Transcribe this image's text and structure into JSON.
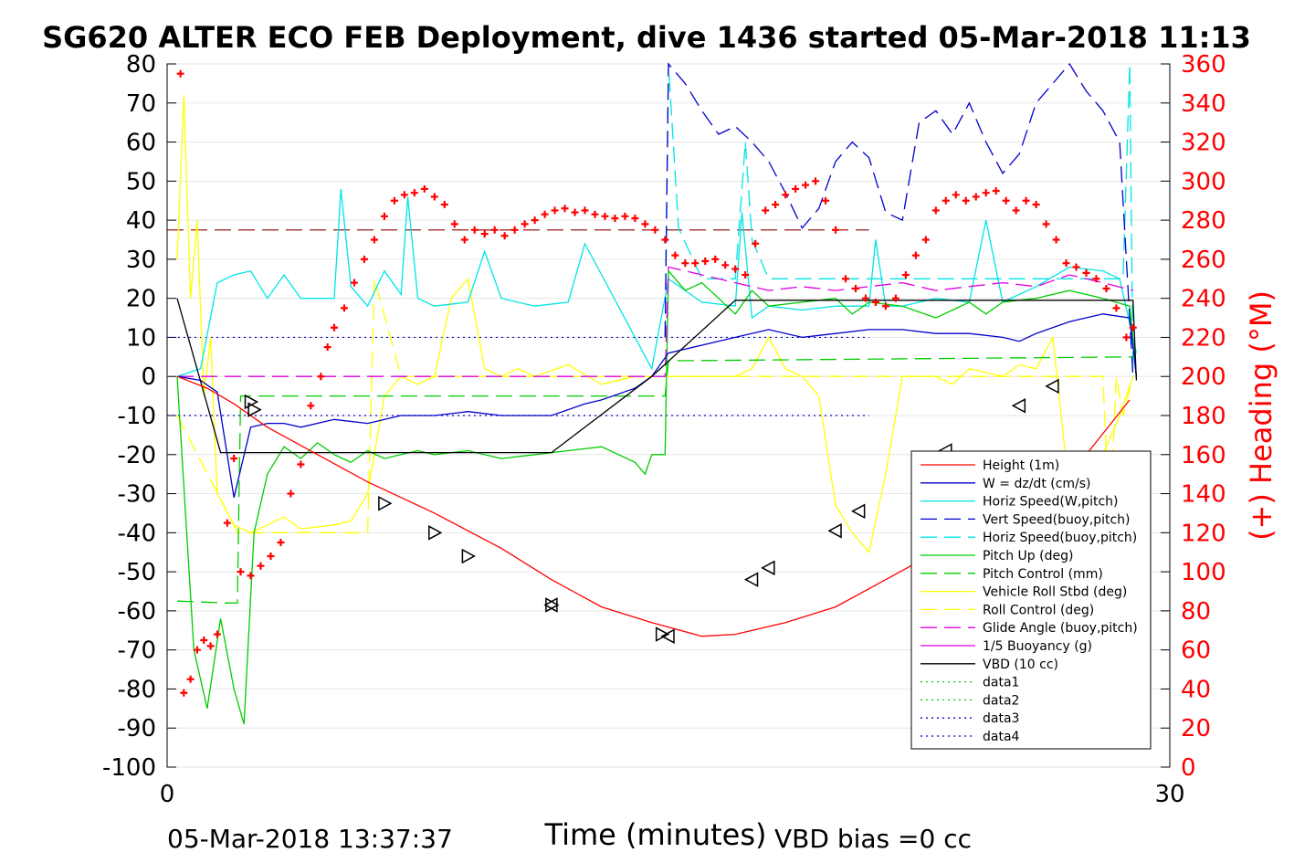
{
  "colors": {
    "height": "#ff0000",
    "w": "#0000cc",
    "horiz_w": "#00e5e5",
    "vert_buoy": "#0000cc",
    "horiz_buoy": "#00e5e5",
    "pitch_up": "#00cc00",
    "pitch_ctrl": "#00cc00",
    "roll": "#ffff00",
    "roll_ctrl": "#ffff00",
    "glide": "#e000e0",
    "buoy": "#e000e0",
    "vbd": "#000000",
    "heading": "#ff0000",
    "heading_ref": "#8b0000"
  },
  "footer": {
    "date": "05-Mar-2018 13:37:37",
    "vbd_bias": "VBD bias =0 cc"
  },
  "chart_data": {
    "type": "line",
    "title": "SG620 ALTER ECO FEB Deployment, dive 1436 started 05-Mar-2018 11:13",
    "xlabel": "Time (minutes)",
    "ylabel": "",
    "ylabel_right": "(+) Heading (°M)",
    "xlim": [
      0,
      30
    ],
    "ylim": [
      -100,
      80
    ],
    "ylim_right": [
      0,
      360
    ],
    "x_ticks": [
      "0",
      "30"
    ],
    "y_ticks": [
      "80",
      "70",
      "60",
      "50",
      "40",
      "30",
      "20",
      "10",
      "0",
      "-10",
      "-20",
      "-30",
      "-40",
      "-50",
      "-60",
      "-70",
      "-80",
      "-90",
      "-100"
    ],
    "y_right_ticks": [
      "360",
      "340",
      "320",
      "300",
      "280",
      "260",
      "240",
      "220",
      "200",
      "180",
      "160",
      "140",
      "120",
      "100",
      "80",
      "60",
      "40",
      "20",
      "0"
    ],
    "grid": "horizontal",
    "legend_position": "lower-right",
    "legend": [
      {
        "label": "Height (1m)",
        "key": "height",
        "dash": "solid"
      },
      {
        "label": "W = dz/dt (cm/s)",
        "key": "w",
        "dash": "solid"
      },
      {
        "label": "Horiz Speed(W,pitch)",
        "key": "horiz_w",
        "dash": "solid"
      },
      {
        "label": "Vert Speed(buoy,pitch)",
        "key": "vert_buoy",
        "dash": "dashed"
      },
      {
        "label": "Horiz Speed(buoy,pitch)",
        "key": "horiz_buoy",
        "dash": "dashed"
      },
      {
        "label": "Pitch Up (deg)",
        "key": "pitch_up",
        "dash": "solid"
      },
      {
        "label": "Pitch Control (mm)",
        "key": "pitch_ctrl",
        "dash": "dashed"
      },
      {
        "label": "Vehicle Roll Stbd (deg)",
        "key": "roll",
        "dash": "solid"
      },
      {
        "label": "Roll Control (deg)",
        "key": "roll_ctrl",
        "dash": "dashed"
      },
      {
        "label": "Glide Angle (buoy,pitch)",
        "key": "glide",
        "dash": "dashed"
      },
      {
        "label": "1/5 Buoyancy (g)",
        "key": "buoy",
        "dash": "solid"
      },
      {
        "label": "VBD (10 cc)",
        "key": "vbd",
        "dash": "solid"
      },
      {
        "label": "data1",
        "key": "pitch_up",
        "dash": "dotted"
      },
      {
        "label": "data2",
        "key": "pitch_up",
        "dash": "dotted"
      },
      {
        "label": "data3",
        "key": "w",
        "dash": "dotted"
      },
      {
        "label": "data4",
        "key": "w",
        "dash": "dotted"
      }
    ],
    "series": {
      "height": {
        "x": [
          0.3,
          1.2,
          2.0,
          3.0,
          4.5,
          6.0,
          8.0,
          10.0,
          11.5,
          13.0,
          14.5,
          16.0,
          17.0,
          18.5,
          20.0,
          21.5,
          23.0,
          24.5,
          26.0,
          27.5,
          28.8
        ],
        "y": [
          0,
          -3,
          -7,
          -13,
          -20,
          -27,
          -35,
          -44,
          -52,
          -59,
          -63,
          -66.5,
          -66,
          -63,
          -59,
          -52,
          -45,
          -36,
          -28,
          -20,
          -6
        ]
      },
      "vbd": {
        "x": [
          0.3,
          1.6,
          2.2,
          9.0,
          11.5,
          14.5,
          17.0,
          28.9,
          29.0
        ],
        "y": [
          20,
          -19.5,
          -19.5,
          -19.5,
          -19.5,
          0,
          19.5,
          19.5,
          -1
        ]
      },
      "w": {
        "x": [
          0.3,
          1.0,
          1.5,
          2.0,
          2.5,
          3.0,
          3.5,
          4.0,
          5.0,
          6.0,
          7.0,
          8.0,
          9.0,
          10.0,
          11.5,
          12.5,
          13.0,
          14.0,
          14.5,
          15.0,
          16.0,
          17.0,
          18.0,
          19.0,
          20.0,
          21.0,
          22.0,
          23.0,
          24.0,
          25.0,
          25.5,
          26.0,
          27.0,
          28.0,
          28.8,
          29.0
        ],
        "y": [
          0,
          -1,
          -4,
          -31,
          -13,
          -12,
          -12,
          -13,
          -11,
          -12,
          -10,
          -10,
          -9,
          -10,
          -10,
          -7,
          -6,
          -3,
          0,
          6,
          8,
          10,
          12,
          10,
          11,
          12,
          12,
          11,
          11,
          10,
          9,
          11,
          14,
          16,
          15,
          0
        ]
      },
      "horiz_w": {
        "x": [
          0.3,
          1.0,
          1.5,
          2.0,
          2.5,
          3.0,
          3.5,
          4.0,
          5.0,
          5.2,
          5.5,
          6.0,
          6.5,
          7.0,
          7.2,
          7.5,
          8.0,
          9.0,
          9.5,
          10.0,
          11.0,
          12.0,
          12.5,
          13.0,
          14.0,
          14.5,
          15.0,
          15.5,
          16.0,
          17.0,
          17.2,
          17.5,
          18.0,
          19.0,
          20.0,
          21.0,
          21.2,
          21.5,
          22.0,
          23.0,
          24.0,
          24.5,
          25.0,
          26.0,
          27.0,
          28.0,
          28.5,
          29.0
        ],
        "y": [
          0,
          2,
          24,
          26,
          27,
          20,
          26,
          20,
          20,
          48,
          23,
          18,
          27,
          21,
          46,
          20,
          18,
          19,
          32,
          20,
          18,
          19,
          34,
          26,
          10,
          2,
          25,
          22,
          19,
          18,
          42,
          15,
          18,
          17,
          18,
          18,
          35,
          18,
          18,
          20,
          19,
          40,
          19,
          23,
          28,
          27,
          25,
          6
        ]
      },
      "vert_buoy": {
        "x": [
          14.9,
          15.0,
          15.5,
          16.0,
          16.5,
          17.0,
          17.5,
          18.0,
          18.5,
          19.0,
          19.5,
          20.0,
          20.5,
          21.0,
          21.5,
          22.0,
          22.5,
          23.0,
          23.5,
          24.0,
          24.5,
          25.0,
          25.5,
          26.0,
          26.5,
          27.0,
          27.5,
          28.0,
          28.5,
          28.9
        ],
        "y": [
          10,
          80,
          75,
          68,
          62,
          64,
          60,
          55,
          47,
          38,
          43,
          55,
          60,
          56,
          42,
          40,
          65,
          68,
          62,
          70,
          60,
          52,
          57,
          70,
          75,
          80,
          73,
          68,
          60,
          0
        ]
      },
      "horiz_buoy": {
        "x": [
          14.9,
          15.0,
          15.3,
          16.0,
          17.0,
          17.3,
          17.5,
          18.0,
          18.3,
          28.6,
          28.8,
          28.9
        ],
        "y": [
          10,
          80,
          38,
          25,
          25,
          60,
          35,
          25,
          25,
          25,
          80,
          0
        ]
      },
      "pitch_up": {
        "x": [
          0.3,
          0.8,
          1.2,
          1.6,
          2.0,
          2.3,
          2.6,
          3.0,
          3.5,
          4.0,
          4.5,
          5.0,
          5.5,
          6.0,
          6.5,
          7.0,
          7.5,
          8.0,
          9.0,
          10.0,
          11.0,
          12.0,
          13.0,
          14.0,
          14.3,
          14.5,
          14.9,
          15.0,
          15.5,
          16.0,
          16.5,
          17.0,
          17.5,
          18.0,
          19.0,
          20.0,
          20.5,
          21.0,
          22.0,
          23.0,
          24.0,
          24.5,
          25.0,
          26.0,
          27.0,
          28.0,
          28.8,
          29.0
        ],
        "y": [
          0,
          -70,
          -85,
          -62,
          -80,
          -89,
          -40,
          -25,
          -18,
          -21,
          -17,
          -20,
          -22,
          -19,
          -21,
          -20,
          -19,
          -20,
          -19,
          -21,
          -20,
          -19,
          -18,
          -22,
          -25,
          -20,
          -20,
          27,
          22,
          24,
          20,
          16,
          22,
          18,
          19,
          20,
          16,
          19,
          18,
          15,
          19,
          16,
          19,
          20,
          22,
          20,
          18,
          0
        ]
      },
      "pitch_ctrl": {
        "x": [
          0.3,
          1.8,
          2.1,
          2.2,
          14.9,
          15.0,
          28.9
        ],
        "y": [
          -57.5,
          -58,
          -58,
          -5,
          -5,
          4,
          5
        ]
      },
      "roll": {
        "x": [
          0.3,
          0.5,
          0.7,
          0.9,
          1.1,
          1.3,
          1.5,
          2.0,
          2.5,
          3.0,
          3.5,
          4.0,
          5.0,
          5.5,
          6.0,
          6.5,
          7.0,
          7.5,
          8.0,
          8.5,
          9.0,
          9.5,
          10.0,
          10.5,
          11.0,
          12.0,
          13.0,
          14.0,
          15.0,
          16.0,
          17.0,
          17.5,
          18.0,
          18.5,
          19.0,
          19.5,
          20.0,
          20.5,
          21.0,
          21.5,
          22.0,
          23.0,
          23.5,
          24.0,
          25.0,
          25.5,
          26.0,
          26.5,
          27.0,
          27.5,
          28.0,
          28.5,
          28.9
        ],
        "y": [
          30,
          72,
          20,
          40,
          -5,
          10,
          -30,
          -38,
          -40,
          -38,
          -36,
          -39,
          -38,
          -37,
          -30,
          -5,
          0,
          -2,
          0,
          20,
          25,
          2,
          0,
          2,
          0,
          3,
          -2,
          0,
          0,
          0,
          0,
          2,
          10,
          2,
          0,
          -5,
          -33,
          -40,
          -45,
          -25,
          0,
          0,
          -2,
          2,
          0,
          3,
          2,
          10,
          -30,
          -40,
          -20,
          -10,
          0
        ]
      },
      "roll_ctrl": {
        "x": [
          0.3,
          2.0,
          2.1,
          4.0,
          4.8,
          5.0,
          6.0,
          6.2,
          7.0,
          28.0,
          28.2,
          28.4,
          28.6,
          28.9
        ],
        "y": [
          -10,
          -38,
          -40,
          -40,
          -40,
          -40,
          -40,
          25,
          0,
          0,
          -40,
          0,
          -10,
          0
        ]
      },
      "glide": {
        "x": [
          0.3,
          14.9,
          15.0,
          16.0,
          17.0,
          18.0,
          19.0,
          20.0,
          21.0,
          22.0,
          23.0,
          24.0,
          25.0,
          26.0,
          27.0,
          28.0,
          28.9
        ],
        "y": [
          0,
          0,
          28,
          26,
          24,
          22,
          23,
          22,
          23,
          24,
          22,
          23,
          24,
          23,
          26,
          24,
          22
        ]
      },
      "heading": {
        "x": [
          0.4,
          0.5,
          0.7,
          0.9,
          1.1,
          1.3,
          1.5,
          1.8,
          2.0,
          2.2,
          2.5,
          2.8,
          3.1,
          3.4,
          3.7,
          4.0,
          4.3,
          4.6,
          4.8,
          5.0,
          5.3,
          5.6,
          5.9,
          6.2,
          6.5,
          6.8,
          7.1,
          7.4,
          7.7,
          8.0,
          8.3,
          8.6,
          8.9,
          9.2,
          9.5,
          9.8,
          10.1,
          10.4,
          10.7,
          11.0,
          11.3,
          11.6,
          11.9,
          12.2,
          12.5,
          12.8,
          13.1,
          13.4,
          13.7,
          14.0,
          14.3,
          14.6,
          14.9,
          15.2,
          15.5,
          15.8,
          16.1,
          16.4,
          16.7,
          17.0,
          17.3,
          17.6,
          17.9,
          18.2,
          18.5,
          18.8,
          19.1,
          19.4,
          19.7,
          20.0,
          20.3,
          20.6,
          20.9,
          21.2,
          21.5,
          21.8,
          22.1,
          22.4,
          22.7,
          23.0,
          23.3,
          23.6,
          23.9,
          24.2,
          24.5,
          24.8,
          25.1,
          25.4,
          25.7,
          26.0,
          26.3,
          26.6,
          26.9,
          27.2,
          27.5,
          27.8,
          28.1,
          28.4,
          28.7,
          28.9
        ],
        "y": [
          355,
          38,
          45,
          60,
          65,
          62,
          68,
          125,
          158,
          100,
          98,
          103,
          108,
          115,
          140,
          155,
          185,
          200,
          215,
          225,
          235,
          248,
          260,
          270,
          282,
          290,
          293,
          294,
          296,
          292,
          288,
          278,
          270,
          275,
          273,
          275,
          272,
          275,
          278,
          280,
          283,
          285,
          286,
          284,
          285,
          283,
          282,
          281,
          282,
          281,
          278,
          275,
          270,
          262,
          258,
          258,
          259,
          260,
          257,
          255,
          252,
          268,
          285,
          288,
          293,
          296,
          298,
          300,
          290,
          275,
          250,
          245,
          240,
          238,
          236,
          240,
          252,
          262,
          270,
          285,
          290,
          293,
          290,
          292,
          294,
          295,
          290,
          285,
          290,
          288,
          278,
          270,
          258,
          256,
          253,
          250,
          245,
          235,
          220,
          225
        ]
      }
    },
    "heading_ref": 275,
    "hlines_left": [
      10,
      -10
    ],
    "markers_down": [
      [
        2.5,
        -6.5
      ],
      [
        2.6,
        -8.5
      ],
      [
        6.5,
        -32.5
      ],
      [
        8.0,
        -40.0
      ],
      [
        9.0,
        -46.0
      ],
      [
        11.5,
        -58.5
      ],
      [
        14.8,
        -66.0
      ]
    ],
    "markers_up": [
      [
        11.5,
        -58.5
      ],
      [
        15.0,
        -66.5
      ],
      [
        17.5,
        -52.0
      ],
      [
        18.0,
        -49.0
      ],
      [
        20.0,
        -39.5
      ],
      [
        20.7,
        -34.5
      ],
      [
        22.5,
        -23.5
      ],
      [
        23.3,
        -19.0
      ],
      [
        25.5,
        -7.5
      ],
      [
        26.5,
        -2.5
      ]
    ]
  }
}
